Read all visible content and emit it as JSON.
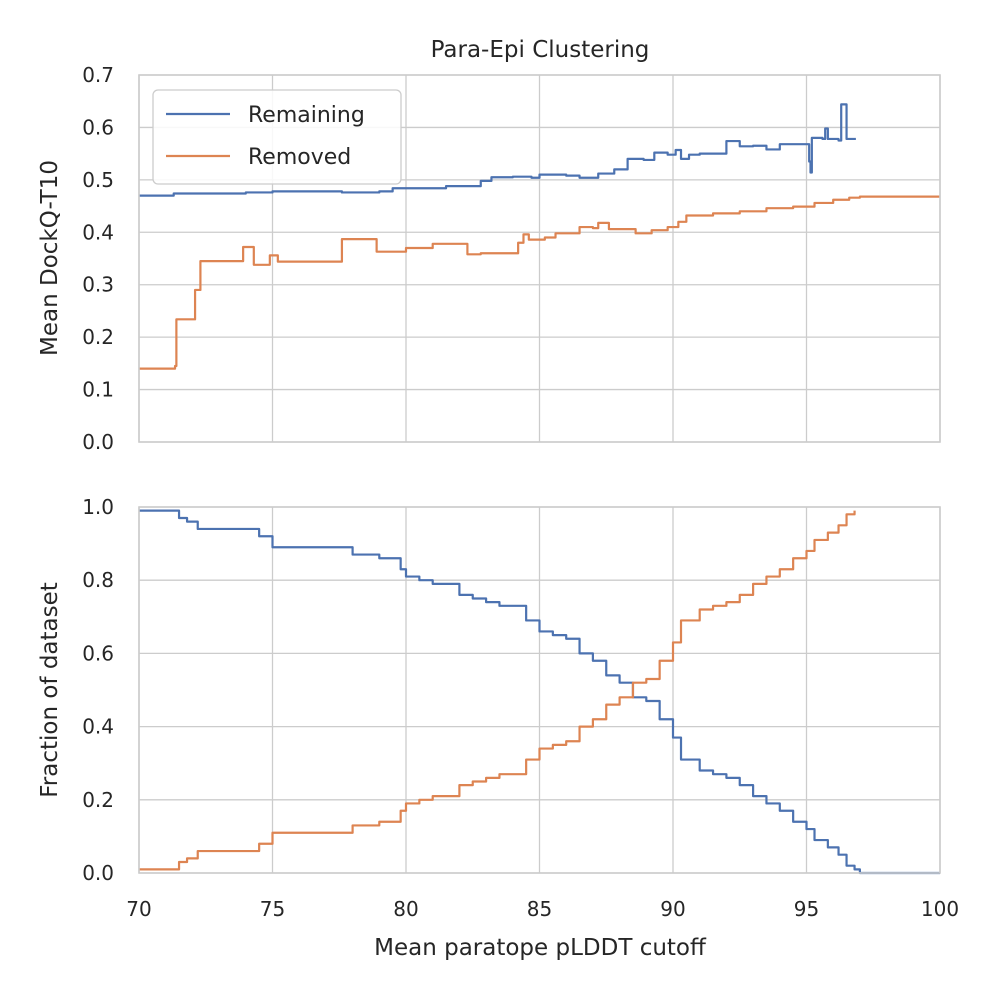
{
  "chart_data": [
    {
      "type": "line",
      "title": "Para-Epi Clustering",
      "ylabel": "Mean DockQ-T10",
      "xlabel": "",
      "xlim": [
        70,
        100
      ],
      "ylim": [
        0.0,
        0.7
      ],
      "xticks": [
        70,
        75,
        80,
        85,
        90,
        95,
        100
      ],
      "yticks": [
        "0.0",
        "0.1",
        "0.2",
        "0.3",
        "0.4",
        "0.5",
        "0.6",
        "0.7"
      ],
      "grid": true,
      "legend": {
        "placement": "upper-left",
        "entries": [
          "Remaining",
          "Removed"
        ]
      },
      "series": [
        {
          "name": "Remaining",
          "color": "#4c72b0",
          "points": [
            [
              70,
              0.47
            ],
            [
              71.2,
              0.47
            ],
            [
              71.3,
              0.474
            ],
            [
              73.5,
              0.474
            ],
            [
              74,
              0.476
            ],
            [
              75,
              0.478
            ],
            [
              77.5,
              0.478
            ],
            [
              77.6,
              0.476
            ],
            [
              79,
              0.478
            ],
            [
              79.5,
              0.484
            ],
            [
              81.5,
              0.488
            ],
            [
              82,
              0.488
            ],
            [
              82.8,
              0.498
            ],
            [
              83.2,
              0.505
            ],
            [
              84,
              0.506
            ],
            [
              84.7,
              0.504
            ],
            [
              85,
              0.51
            ],
            [
              86,
              0.508
            ],
            [
              86.5,
              0.504
            ],
            [
              86.8,
              0.504
            ],
            [
              87.2,
              0.512
            ],
            [
              87.8,
              0.52
            ],
            [
              88,
              0.52
            ],
            [
              88.3,
              0.54
            ],
            [
              88.9,
              0.538
            ],
            [
              89.3,
              0.552
            ],
            [
              89.8,
              0.548
            ],
            [
              90.1,
              0.557
            ],
            [
              90.3,
              0.54
            ],
            [
              90.6,
              0.548
            ],
            [
              91,
              0.55
            ],
            [
              91.8,
              0.55
            ],
            [
              92,
              0.574
            ],
            [
              92.5,
              0.564
            ],
            [
              93,
              0.565
            ],
            [
              93.5,
              0.558
            ],
            [
              94,
              0.568
            ],
            [
              95,
              0.568
            ],
            [
              95.1,
              0.535
            ],
            [
              95.15,
              0.514
            ],
            [
              95.2,
              0.58
            ],
            [
              95.6,
              0.578
            ],
            [
              95.7,
              0.598
            ],
            [
              95.8,
              0.578
            ],
            [
              96.2,
              0.575
            ],
            [
              96.3,
              0.644
            ],
            [
              96.45,
              0.644
            ],
            [
              96.5,
              0.578
            ],
            [
              96.85,
              0.578
            ]
          ]
        },
        {
          "name": "Removed",
          "color": "#dd8452",
          "points": [
            [
              70,
              0.14
            ],
            [
              71.2,
              0.14
            ],
            [
              71.35,
              0.145
            ],
            [
              71.4,
              0.234
            ],
            [
              72,
              0.234
            ],
            [
              72.1,
              0.29
            ],
            [
              72.2,
              0.29
            ],
            [
              72.3,
              0.345
            ],
            [
              73.8,
              0.345
            ],
            [
              73.9,
              0.372
            ],
            [
              74.2,
              0.372
            ],
            [
              74.3,
              0.338
            ],
            [
              74.8,
              0.338
            ],
            [
              74.9,
              0.356
            ],
            [
              75.1,
              0.356
            ],
            [
              75.2,
              0.344
            ],
            [
              77.5,
              0.344
            ],
            [
              77.6,
              0.387
            ],
            [
              78.8,
              0.387
            ],
            [
              78.9,
              0.363
            ],
            [
              79.8,
              0.363
            ],
            [
              80,
              0.37
            ],
            [
              81,
              0.378
            ],
            [
              82,
              0.378
            ],
            [
              82.3,
              0.358
            ],
            [
              82.8,
              0.36
            ],
            [
              84,
              0.36
            ],
            [
              84.2,
              0.38
            ],
            [
              84.4,
              0.396
            ],
            [
              84.6,
              0.386
            ],
            [
              85,
              0.386
            ],
            [
              85.2,
              0.39
            ],
            [
              85.6,
              0.398
            ],
            [
              86,
              0.398
            ],
            [
              86.5,
              0.41
            ],
            [
              87,
              0.408
            ],
            [
              87.2,
              0.418
            ],
            [
              87.6,
              0.406
            ],
            [
              88.3,
              0.406
            ],
            [
              88.6,
              0.398
            ],
            [
              89.2,
              0.404
            ],
            [
              89.8,
              0.41
            ],
            [
              90.2,
              0.42
            ],
            [
              90.5,
              0.432
            ],
            [
              91.5,
              0.436
            ],
            [
              92,
              0.436
            ],
            [
              92.5,
              0.44
            ],
            [
              93.5,
              0.446
            ],
            [
              94.5,
              0.449
            ],
            [
              95.3,
              0.456
            ],
            [
              96,
              0.462
            ],
            [
              96.6,
              0.466
            ],
            [
              97,
              0.468
            ],
            [
              100,
              0.468
            ]
          ]
        }
      ]
    },
    {
      "type": "line",
      "title": "",
      "ylabel": "Fraction of dataset",
      "xlabel": "Mean paratope pLDDT cutoff",
      "xlim": [
        70,
        100
      ],
      "ylim": [
        0.0,
        1.0
      ],
      "xticks": [
        70,
        75,
        80,
        85,
        90,
        95,
        100
      ],
      "yticks": [
        "0.0",
        "0.2",
        "0.4",
        "0.6",
        "0.8",
        "1.0"
      ],
      "grid": true,
      "series": [
        {
          "name": "Remaining",
          "color": "#4c72b0",
          "points": [
            [
              70,
              0.99
            ],
            [
              71.2,
              0.99
            ],
            [
              71.5,
              0.97
            ],
            [
              71.8,
              0.96
            ],
            [
              72.2,
              0.94
            ],
            [
              74,
              0.94
            ],
            [
              74.5,
              0.92
            ],
            [
              75,
              0.89
            ],
            [
              77.5,
              0.89
            ],
            [
              78,
              0.87
            ],
            [
              79,
              0.86
            ],
            [
              79.8,
              0.83
            ],
            [
              80,
              0.81
            ],
            [
              80.5,
              0.8
            ],
            [
              81,
              0.79
            ],
            [
              81.5,
              0.79
            ],
            [
              82,
              0.76
            ],
            [
              82.5,
              0.75
            ],
            [
              83,
              0.74
            ],
            [
              83.5,
              0.73
            ],
            [
              84,
              0.73
            ],
            [
              84.5,
              0.69
            ],
            [
              85,
              0.66
            ],
            [
              85.5,
              0.65
            ],
            [
              86,
              0.64
            ],
            [
              86.5,
              0.6
            ],
            [
              87,
              0.58
            ],
            [
              87.5,
              0.54
            ],
            [
              88,
              0.52
            ],
            [
              88.5,
              0.48
            ],
            [
              89,
              0.47
            ],
            [
              89.5,
              0.42
            ],
            [
              90,
              0.37
            ],
            [
              90.3,
              0.31
            ],
            [
              91,
              0.28
            ],
            [
              91.5,
              0.27
            ],
            [
              92,
              0.26
            ],
            [
              92.5,
              0.24
            ],
            [
              93,
              0.21
            ],
            [
              93.5,
              0.19
            ],
            [
              94,
              0.17
            ],
            [
              94.5,
              0.14
            ],
            [
              95,
              0.12
            ],
            [
              95.3,
              0.09
            ],
            [
              95.8,
              0.07
            ],
            [
              96.2,
              0.05
            ],
            [
              96.5,
              0.02
            ],
            [
              96.8,
              0.01
            ],
            [
              97,
              0.0
            ],
            [
              100,
              0.0
            ]
          ]
        },
        {
          "name": "Removed",
          "color": "#dd8452",
          "points": [
            [
              70,
              0.01
            ],
            [
              71.2,
              0.01
            ],
            [
              71.5,
              0.03
            ],
            [
              71.8,
              0.04
            ],
            [
              72.2,
              0.06
            ],
            [
              74,
              0.06
            ],
            [
              74.5,
              0.08
            ],
            [
              75,
              0.11
            ],
            [
              77.5,
              0.11
            ],
            [
              78,
              0.13
            ],
            [
              79,
              0.14
            ],
            [
              79.8,
              0.17
            ],
            [
              80,
              0.19
            ],
            [
              80.5,
              0.2
            ],
            [
              81,
              0.21
            ],
            [
              81.5,
              0.21
            ],
            [
              82,
              0.24
            ],
            [
              82.5,
              0.25
            ],
            [
              83,
              0.26
            ],
            [
              83.5,
              0.27
            ],
            [
              84,
              0.27
            ],
            [
              84.5,
              0.31
            ],
            [
              85,
              0.34
            ],
            [
              85.5,
              0.35
            ],
            [
              86,
              0.36
            ],
            [
              86.5,
              0.4
            ],
            [
              87,
              0.42
            ],
            [
              87.5,
              0.46
            ],
            [
              88,
              0.48
            ],
            [
              88.5,
              0.52
            ],
            [
              89,
              0.53
            ],
            [
              89.5,
              0.58
            ],
            [
              90,
              0.63
            ],
            [
              90.3,
              0.69
            ],
            [
              91,
              0.72
            ],
            [
              91.5,
              0.73
            ],
            [
              92,
              0.74
            ],
            [
              92.5,
              0.76
            ],
            [
              93,
              0.79
            ],
            [
              93.5,
              0.81
            ],
            [
              94,
              0.83
            ],
            [
              94.5,
              0.86
            ],
            [
              95,
              0.88
            ],
            [
              95.3,
              0.91
            ],
            [
              95.8,
              0.93
            ],
            [
              96.2,
              0.95
            ],
            [
              96.5,
              0.98
            ],
            [
              96.8,
              0.99
            ]
          ]
        }
      ]
    }
  ]
}
